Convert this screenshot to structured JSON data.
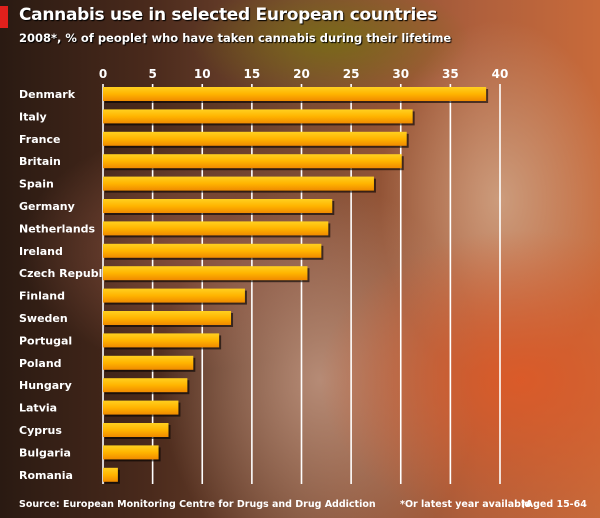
{
  "chart_data": {
    "type": "bar",
    "orientation": "horizontal",
    "title": "Cannabis use in selected European countries",
    "subtitle": "2008*, % of people† who have taken cannabis during their lifetime",
    "categories": [
      "Denmark",
      "Italy",
      "France",
      "Britain",
      "Spain",
      "Germany",
      "Netherlands",
      "Ireland",
      "Czech Republic",
      "Finland",
      "Sweden",
      "Portugal",
      "Poland",
      "Hungary",
      "Latvia",
      "Cyprus",
      "Bulgaria",
      "Romania"
    ],
    "values": [
      38.6,
      31.2,
      30.6,
      30.1,
      27.3,
      23.1,
      22.7,
      22.0,
      20.6,
      14.3,
      12.9,
      11.7,
      9.1,
      8.5,
      7.6,
      6.6,
      5.6,
      1.5
    ],
    "xlim": [
      0,
      40
    ],
    "xticks": [
      "0",
      "5",
      "10",
      "15",
      "20",
      "25",
      "30",
      "35",
      "40"
    ],
    "grid": true,
    "bar_color": "#f5a800",
    "source": "Source: European Monitoring Centre for Drugs and Drug Addiction",
    "notes": [
      "*Or latest year available",
      "†Aged 15-64"
    ]
  }
}
